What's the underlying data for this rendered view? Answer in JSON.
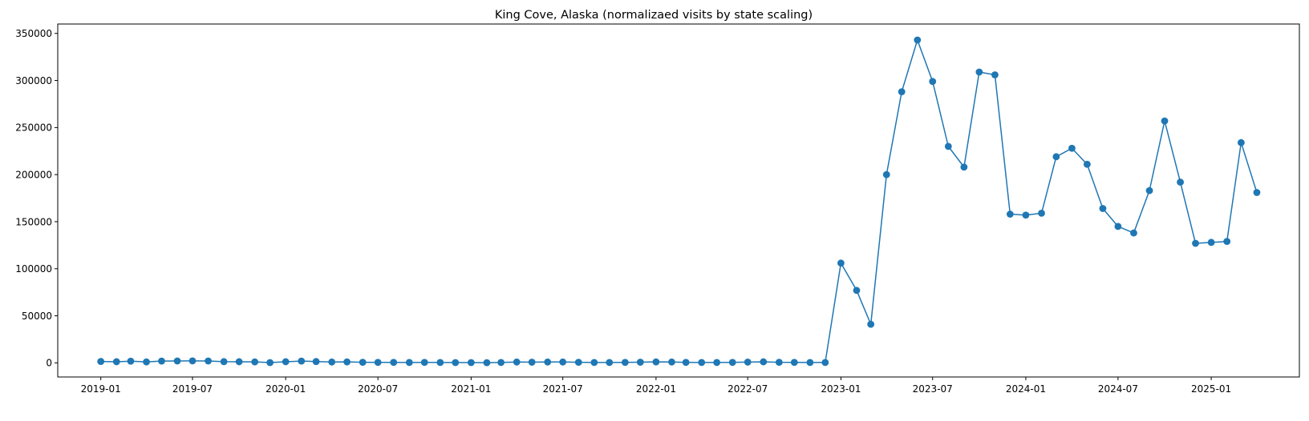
{
  "chart_data": {
    "type": "line",
    "title": "King Cove, Alaska (normalizaed visits by state scaling)",
    "xlabel": "",
    "ylabel": "",
    "line_color": "#1f77b4",
    "marker": "circle",
    "grid": false,
    "legend": "none",
    "ylim": [
      -15000,
      360000
    ],
    "xlim": [
      "2018-10-08",
      "2025-06-24"
    ],
    "x_ticks": [
      "2019-01",
      "2019-07",
      "2020-01",
      "2020-07",
      "2021-01",
      "2021-07",
      "2022-01",
      "2022-07",
      "2023-01",
      "2023-07",
      "2024-01",
      "2024-07",
      "2025-01"
    ],
    "y_ticks": [
      0,
      50000,
      100000,
      150000,
      200000,
      250000,
      300000,
      350000
    ],
    "x": [
      "2019-01",
      "2019-02",
      "2019-03",
      "2019-04",
      "2019-05",
      "2019-06",
      "2019-07",
      "2019-08",
      "2019-09",
      "2019-10",
      "2019-11",
      "2019-12",
      "2020-01",
      "2020-02",
      "2020-03",
      "2020-04",
      "2020-05",
      "2020-06",
      "2020-07",
      "2020-08",
      "2020-09",
      "2020-10",
      "2020-11",
      "2020-12",
      "2021-01",
      "2021-02",
      "2021-03",
      "2021-04",
      "2021-05",
      "2021-06",
      "2021-07",
      "2021-08",
      "2021-09",
      "2021-10",
      "2021-11",
      "2021-12",
      "2022-01",
      "2022-02",
      "2022-03",
      "2022-04",
      "2022-05",
      "2022-06",
      "2022-07",
      "2022-08",
      "2022-09",
      "2022-10",
      "2022-11",
      "2022-12",
      "2023-01",
      "2023-02",
      "2023-03",
      "2023-04",
      "2023-05",
      "2023-06",
      "2023-07",
      "2023-08",
      "2023-09",
      "2023-10",
      "2023-11",
      "2023-12",
      "2024-01",
      "2024-02",
      "2024-03",
      "2024-04",
      "2024-05",
      "2024-06",
      "2024-07",
      "2024-08",
      "2024-09",
      "2024-10",
      "2024-11",
      "2024-12",
      "2025-01",
      "2025-02",
      "2025-03",
      "2025-04"
    ],
    "values": [
      1500,
      1200,
      1800,
      1000,
      1900,
      2000,
      2100,
      2000,
      1300,
      1200,
      1000,
      300,
      1200,
      1900,
      1400,
      900,
      1000,
      600,
      500,
      500,
      400,
      500,
      400,
      300,
      300,
      200,
      400,
      900,
      700,
      900,
      900,
      600,
      400,
      400,
      500,
      700,
      1000,
      900,
      500,
      400,
      400,
      500,
      800,
      1100,
      600,
      500,
      400,
      400,
      106000,
      77000,
      41000,
      200000,
      288000,
      343000,
      299000,
      230000,
      208000,
      309000,
      306000,
      158000,
      157000,
      159000,
      219000,
      228000,
      211000,
      164000,
      145000,
      138000,
      183000,
      257000,
      192000,
      127000,
      128000,
      129000,
      234000,
      181000
    ]
  }
}
